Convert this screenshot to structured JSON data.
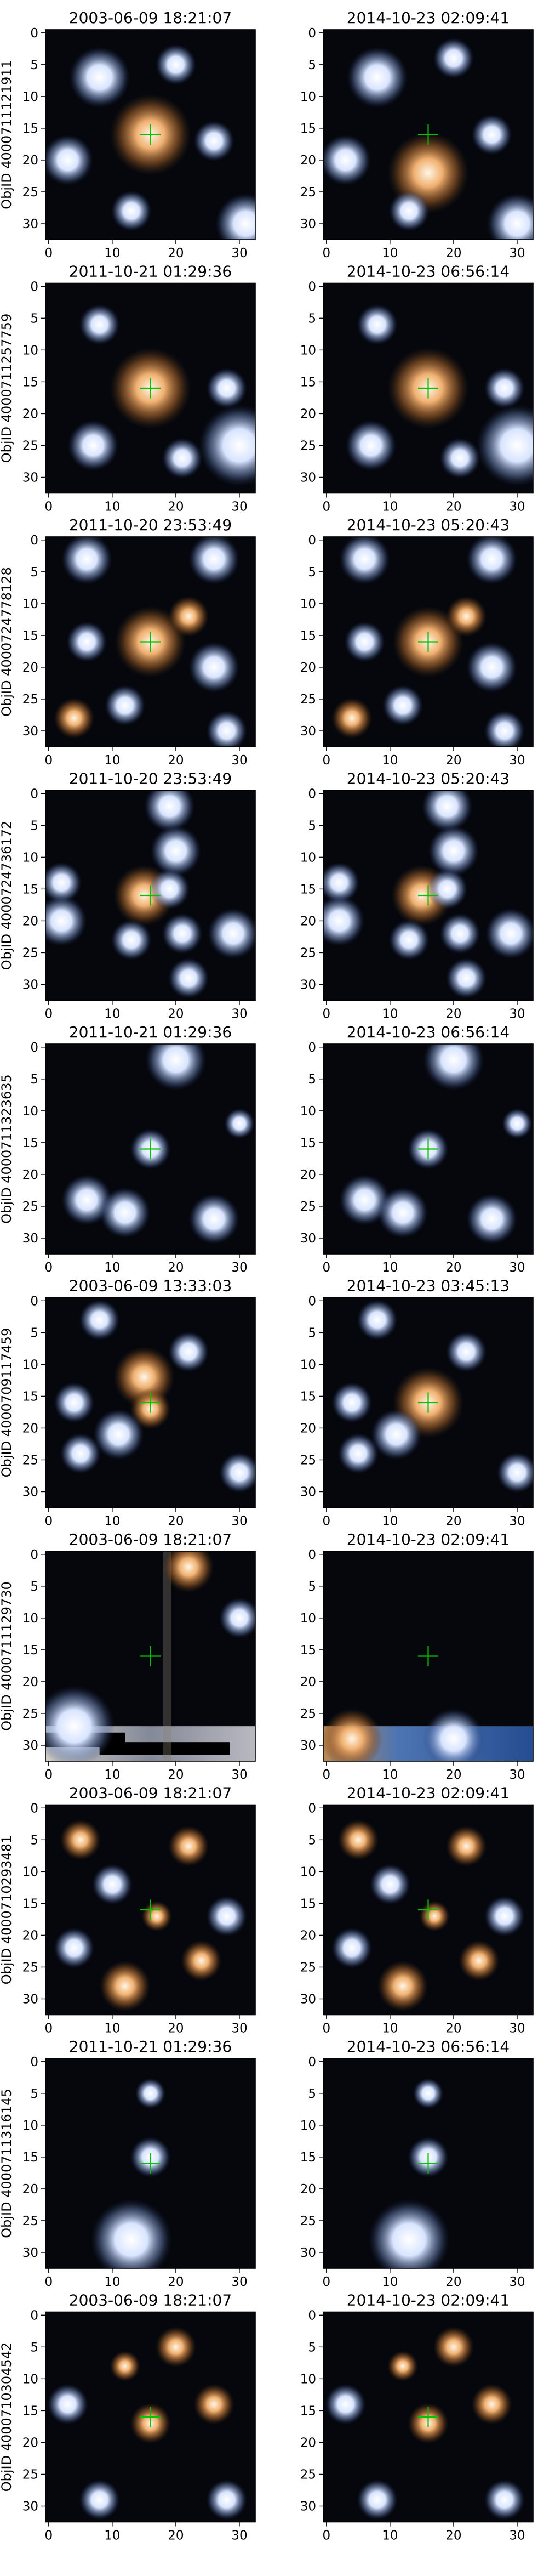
{
  "figure": {
    "colors": {
      "background": "#ffffff",
      "axis": "#000000",
      "marker": "#00c400",
      "sky": "#05070d",
      "star_warm": "#e0a060",
      "star_cool": "#dce8ff"
    },
    "axis_ticks": [
      "0",
      "10",
      "20",
      "30"
    ],
    "y_ticks": [
      "0",
      "5",
      "10",
      "15",
      "20",
      "25",
      "30"
    ],
    "rows": [
      {
        "objid": "ObjID 4000711121911",
        "left": {
          "title": "2003-06-09 18:21:07",
          "stars": [
            [
              16,
              16,
              4,
              "warm"
            ],
            [
              8,
              7,
              3,
              "cool"
            ],
            [
              3,
              20,
              2.5,
              "cool"
            ],
            [
              20,
              5,
              2,
              "cool"
            ],
            [
              26,
              17,
              2,
              "cool"
            ],
            [
              13,
              28,
              2,
              "cool"
            ],
            [
              31,
              30,
              3,
              "cool"
            ]
          ]
        },
        "right": {
          "title": "2014-10-23 02:09:41",
          "stars": [
            [
              16,
              22,
              4,
              "warm"
            ],
            [
              8,
              7,
              3,
              "cool"
            ],
            [
              3,
              20,
              2.5,
              "cool"
            ],
            [
              20,
              4,
              2,
              "cool"
            ],
            [
              26,
              16,
              2,
              "cool"
            ],
            [
              13,
              28,
              2,
              "cool"
            ],
            [
              30,
              30,
              3,
              "cool"
            ]
          ]
        }
      },
      {
        "objid": "ObjID 4000711257759",
        "left": {
          "title": "2011-10-21 01:29:36",
          "stars": [
            [
              16,
              16,
              4,
              "warm"
            ],
            [
              8,
              6,
              2,
              "cool"
            ],
            [
              28,
              16,
              2,
              "cool"
            ],
            [
              30,
              25,
              4,
              "cool"
            ],
            [
              7,
              25,
              2.5,
              "cool"
            ],
            [
              21,
              27,
              2,
              "cool"
            ]
          ]
        },
        "right": {
          "title": "2014-10-23 06:56:14",
          "stars": [
            [
              16,
              16,
              4,
              "warm"
            ],
            [
              8,
              6,
              2,
              "cool"
            ],
            [
              28,
              16,
              2,
              "cool"
            ],
            [
              30,
              25,
              4,
              "cool"
            ],
            [
              7,
              25,
              2.5,
              "cool"
            ],
            [
              21,
              27,
              2,
              "cool"
            ]
          ]
        }
      },
      {
        "objid": "ObjID 4000724778128",
        "left": {
          "title": "2011-10-20 23:53:49",
          "stars": [
            [
              16,
              16,
              3.5,
              "warm"
            ],
            [
              6,
              3,
              2.5,
              "cool"
            ],
            [
              26,
              3,
              2.5,
              "cool"
            ],
            [
              22,
              12,
              2,
              "warm"
            ],
            [
              6,
              16,
              2,
              "cool"
            ],
            [
              26,
              20,
              2.5,
              "cool"
            ],
            [
              12,
              26,
              2,
              "cool"
            ],
            [
              4,
              28,
              2,
              "warm"
            ],
            [
              28,
              30,
              2,
              "cool"
            ]
          ]
        },
        "right": {
          "title": "2014-10-23 05:20:43",
          "stars": [
            [
              16,
              16,
              3.5,
              "warm"
            ],
            [
              6,
              3,
              2.5,
              "cool"
            ],
            [
              26,
              3,
              2.5,
              "cool"
            ],
            [
              22,
              12,
              2,
              "warm"
            ],
            [
              6,
              16,
              2,
              "cool"
            ],
            [
              26,
              20,
              2.5,
              "cool"
            ],
            [
              12,
              26,
              2,
              "cool"
            ],
            [
              4,
              28,
              2,
              "warm"
            ],
            [
              28,
              30,
              2,
              "cool"
            ]
          ]
        }
      },
      {
        "objid": "ObjID 4000724736172",
        "left": {
          "title": "2011-10-20 23:53:49",
          "stars": [
            [
              15,
              16,
              3,
              "warm"
            ],
            [
              19,
              2,
              2.5,
              "cool"
            ],
            [
              20,
              9,
              2.5,
              "cool"
            ],
            [
              19,
              15,
              2,
              "cool"
            ],
            [
              2,
              14,
              2,
              "cool"
            ],
            [
              2,
              20,
              2.5,
              "cool"
            ],
            [
              13,
              23,
              2,
              "cool"
            ],
            [
              21,
              22,
              2,
              "cool"
            ],
            [
              29,
              22,
              2.5,
              "cool"
            ],
            [
              22,
              29,
              2,
              "cool"
            ]
          ]
        },
        "right": {
          "title": "2014-10-23 05:20:43",
          "stars": [
            [
              15,
              16,
              3,
              "warm"
            ],
            [
              19,
              2,
              2.5,
              "cool"
            ],
            [
              20,
              9,
              2.5,
              "cool"
            ],
            [
              19,
              15,
              2,
              "cool"
            ],
            [
              2,
              14,
              2,
              "cool"
            ],
            [
              2,
              20,
              2.5,
              "cool"
            ],
            [
              13,
              23,
              2,
              "cool"
            ],
            [
              21,
              22,
              2,
              "cool"
            ],
            [
              29,
              22,
              2.5,
              "cool"
            ],
            [
              22,
              29,
              2,
              "cool"
            ]
          ]
        }
      },
      {
        "objid": "ObjID 4000711323635",
        "left": {
          "title": "2011-10-21 01:29:36",
          "stars": [
            [
              16,
              16,
              2,
              "cool"
            ],
            [
              20,
              2,
              3,
              "cool"
            ],
            [
              6,
              24,
              2.5,
              "cool"
            ],
            [
              12,
              26,
              2.5,
              "cool"
            ],
            [
              26,
              27,
              2.5,
              "cool"
            ],
            [
              30,
              12,
              1.5,
              "cool"
            ]
          ]
        },
        "right": {
          "title": "2014-10-23 06:56:14",
          "stars": [
            [
              16,
              16,
              2,
              "cool"
            ],
            [
              20,
              2,
              3,
              "cool"
            ],
            [
              6,
              24,
              2.5,
              "cool"
            ],
            [
              12,
              26,
              2.5,
              "cool"
            ],
            [
              26,
              27,
              2.5,
              "cool"
            ],
            [
              30,
              12,
              1.5,
              "cool"
            ]
          ]
        }
      },
      {
        "objid": "ObjID 4000709117459",
        "left": {
          "title": "2003-06-09 13:33:03",
          "stars": [
            [
              15,
              12,
              3,
              "warm"
            ],
            [
              16,
              17,
              2,
              "warm"
            ],
            [
              22,
              8,
              2,
              "cool"
            ],
            [
              4,
              16,
              2,
              "cool"
            ],
            [
              5,
              24,
              2,
              "cool"
            ],
            [
              11,
              21,
              2.5,
              "cool"
            ],
            [
              30,
              27,
              2,
              "cool"
            ],
            [
              8,
              3,
              2,
              "cool"
            ]
          ]
        },
        "right": {
          "title": "2014-10-23 03:45:13",
          "stars": [
            [
              16,
              16,
              3.5,
              "warm"
            ],
            [
              22,
              8,
              2,
              "cool"
            ],
            [
              4,
              16,
              2,
              "cool"
            ],
            [
              5,
              24,
              2,
              "cool"
            ],
            [
              11,
              21,
              2.5,
              "cool"
            ],
            [
              30,
              27,
              2,
              "cool"
            ],
            [
              8,
              3,
              2,
              "cool"
            ]
          ]
        }
      },
      {
        "objid": "ObjID 4000711129730",
        "left": {
          "title": "2003-06-09 18:21:07",
          "stars": [
            [
              22,
              2,
              2.5,
              "warm"
            ],
            [
              30,
              10,
              2,
              "cool"
            ],
            [
              4,
              27,
              4,
              "cool"
            ]
          ]
        },
        "right": {
          "title": "2014-10-23 02:09:41",
          "stars": [
            [
              4,
              29,
              3,
              "warm"
            ],
            [
              20,
              29,
              3,
              "cool"
            ]
          ]
        }
      },
      {
        "objid": "ObjID 4000710293481",
        "left": {
          "title": "2003-06-09 18:21:07",
          "stars": [
            [
              5,
              5,
              2,
              "warm"
            ],
            [
              10,
              12,
              2,
              "cool"
            ],
            [
              22,
              6,
              2,
              "warm"
            ],
            [
              28,
              17,
              2,
              "cool"
            ],
            [
              12,
              28,
              2.5,
              "warm"
            ],
            [
              24,
              24,
              2,
              "warm"
            ],
            [
              4,
              22,
              2,
              "cool"
            ],
            [
              17,
              17,
              1.5,
              "warm"
            ]
          ]
        },
        "right": {
          "title": "2014-10-23 02:09:41",
          "stars": [
            [
              5,
              5,
              2,
              "warm"
            ],
            [
              10,
              12,
              2,
              "cool"
            ],
            [
              22,
              6,
              2,
              "warm"
            ],
            [
              28,
              17,
              2,
              "cool"
            ],
            [
              12,
              28,
              2.5,
              "warm"
            ],
            [
              24,
              24,
              2,
              "warm"
            ],
            [
              4,
              22,
              2,
              "cool"
            ],
            [
              17,
              17,
              1.5,
              "warm"
            ]
          ]
        }
      },
      {
        "objid": "ObjID 4000711316145",
        "left": {
          "title": "2011-10-21 01:29:36",
          "stars": [
            [
              16,
              15,
              2,
              "cool"
            ],
            [
              16,
              5,
              1.5,
              "cool"
            ],
            [
              13,
              28,
              4,
              "cool"
            ]
          ]
        },
        "right": {
          "title": "2014-10-23 06:56:14",
          "stars": [
            [
              16,
              15,
              2,
              "cool"
            ],
            [
              16,
              5,
              1.5,
              "cool"
            ],
            [
              13,
              28,
              4,
              "cool"
            ]
          ]
        }
      },
      {
        "objid": "ObjID 4000710304542",
        "left": {
          "title": "2003-06-09 18:21:07",
          "stars": [
            [
              16,
              17,
              2,
              "warm"
            ],
            [
              3,
              14,
              2,
              "cool"
            ],
            [
              26,
              14,
              2,
              "warm"
            ],
            [
              20,
              5,
              2,
              "warm"
            ],
            [
              8,
              29,
              2,
              "cool"
            ],
            [
              28,
              29,
              2,
              "cool"
            ],
            [
              12,
              8,
              1.5,
              "warm"
            ]
          ]
        },
        "right": {
          "title": "2014-10-23 02:09:41",
          "stars": [
            [
              16,
              17,
              2,
              "warm"
            ],
            [
              3,
              14,
              2,
              "cool"
            ],
            [
              26,
              14,
              2,
              "warm"
            ],
            [
              20,
              5,
              2,
              "warm"
            ],
            [
              8,
              29,
              2,
              "cool"
            ],
            [
              28,
              29,
              2,
              "cool"
            ],
            [
              12,
              8,
              1.5,
              "warm"
            ]
          ]
        }
      }
    ]
  }
}
